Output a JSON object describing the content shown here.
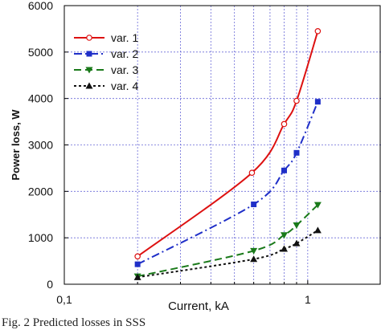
{
  "caption": "Fig. 2 Predicted losses in SSS",
  "chart_data": {
    "type": "line",
    "title": "",
    "xlabel": "Current, kA",
    "ylabel": "Power loss, W",
    "xscale": "log",
    "xlim": [
      0.1,
      2
    ],
    "ylim": [
      0,
      6000
    ],
    "x_ticks": [
      0.1,
      1
    ],
    "x_tick_labels": [
      "0,1",
      "1"
    ],
    "x_minor_ticks": [
      0.2,
      0.3,
      0.4,
      0.5,
      0.6,
      0.7,
      0.8,
      0.9
    ],
    "y_ticks": [
      0,
      1000,
      2000,
      3000,
      4000,
      5000,
      6000
    ],
    "y_tick_labels": [
      "0",
      "1000",
      "2000",
      "3000",
      "4000",
      "5000",
      "6000"
    ],
    "grid": true,
    "legend_position": "top-left",
    "series": [
      {
        "name": "var. 1",
        "color": "#dd1111",
        "dash": "solid",
        "marker": "open-circle",
        "x": [
          0.2,
          0.59,
          0.8,
          0.9,
          1.1
        ],
        "y": [
          600,
          2400,
          3450,
          3950,
          5450
        ]
      },
      {
        "name": "var. 2",
        "color": "#1f2fc8",
        "dash": "dash-dot",
        "marker": "square",
        "x": [
          0.2,
          0.6,
          0.8,
          0.9,
          1.1
        ],
        "y": [
          430,
          1720,
          2450,
          2830,
          3930
        ]
      },
      {
        "name": "var. 3",
        "color": "#1a7a1a",
        "dash": "dash",
        "marker": "triangle-down",
        "x": [
          0.2,
          0.6,
          0.8,
          0.9,
          1.1
        ],
        "y": [
          170,
          720,
          1060,
          1270,
          1710
        ]
      },
      {
        "name": "var. 4",
        "color": "#111111",
        "dash": "dot",
        "marker": "triangle-up",
        "x": [
          0.2,
          0.6,
          0.8,
          0.9,
          1.1
        ],
        "y": [
          150,
          540,
          760,
          880,
          1160
        ]
      }
    ]
  }
}
